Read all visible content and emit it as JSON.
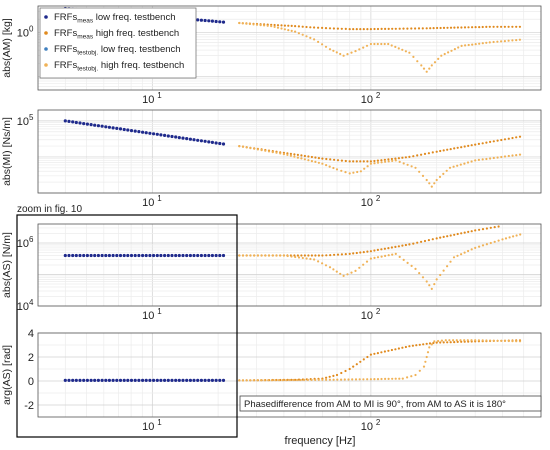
{
  "figure": {
    "xlabel": "frequency [Hz]",
    "zoom_label": "zoom in fig. 10",
    "annotation": "Phasedifference from AM to MI is 90°, from AM to AS it is 180°",
    "colors": {
      "meas_low": "#1f2a8c",
      "meas_high": "#e08a1e",
      "test_low": "#3f7fbf",
      "test_high": "#f0b257"
    }
  },
  "legend": [
    {
      "base": "FRFs",
      "sub": "meas",
      "text": " low freq. testbench",
      "color": "#1f2a8c"
    },
    {
      "base": "FRFs",
      "sub": "meas",
      "text": " high freq. testbench",
      "color": "#e08a1e"
    },
    {
      "base": "FRFs",
      "sub": "testobj.",
      "text": " low freq. testbench",
      "color": "#3f7fbf"
    },
    {
      "base": "FRFs",
      "sub": "testobj.",
      "text": " high freq. testbench",
      "color": "#f0b257"
    }
  ],
  "chart_data": [
    {
      "type": "scatter",
      "xscale": "log",
      "yscale": "log",
      "xlim": [
        3,
        600
      ],
      "ylim": [
        0.05,
        4
      ],
      "grid": true,
      "xticks": [
        10,
        100
      ],
      "yticks": [
        1
      ],
      "xlabel": "",
      "ylabel": "abs(AM) [kg]",
      "series": [
        {
          "key": "meas_low",
          "f": [
            4,
            22
          ],
          "v": [
            3.5,
            1.7
          ]
        },
        {
          "key": "meas_high",
          "f": [
            25,
            35,
            45,
            55,
            65,
            80,
            100,
            130,
            180,
            250,
            350,
            500
          ],
          "v": [
            1.65,
            1.5,
            1.4,
            1.3,
            1.25,
            1.2,
            1.2,
            1.22,
            1.25,
            1.3,
            1.35,
            1.35
          ]
        },
        {
          "key": "test_high",
          "f": [
            25,
            35,
            45,
            55,
            65,
            75,
            85,
            100,
            120,
            150,
            170,
            180,
            190,
            210,
            260,
            350,
            500
          ],
          "v": [
            1.65,
            1.4,
            1.05,
            0.7,
            0.42,
            0.3,
            0.38,
            0.55,
            0.55,
            0.35,
            0.18,
            0.13,
            0.18,
            0.3,
            0.5,
            0.6,
            0.7
          ]
        }
      ]
    },
    {
      "type": "scatter",
      "xscale": "log",
      "yscale": "log",
      "xlim": [
        3,
        600
      ],
      "ylim": [
        1000,
        200000
      ],
      "grid": true,
      "xticks": [
        10,
        100
      ],
      "yticks": [
        100000
      ],
      "xlabel": "",
      "ylabel": "abs(MI) [Ns/m]",
      "series": [
        {
          "key": "meas_low",
          "f": [
            4,
            22
          ],
          "v": [
            100000,
            22000
          ]
        },
        {
          "key": "meas_high",
          "f": [
            25,
            40,
            60,
            80,
            100,
            150,
            200,
            300,
            500
          ],
          "v": [
            20000,
            13000,
            9000,
            7500,
            7500,
            10000,
            14000,
            22000,
            38000
          ]
        },
        {
          "key": "test_high",
          "f": [
            25,
            40,
            60,
            70,
            80,
            90,
            100,
            130,
            160,
            180,
            190,
            200,
            230,
            300,
            500
          ],
          "v": [
            20000,
            12000,
            6500,
            4500,
            3500,
            4000,
            6500,
            8000,
            5000,
            2300,
            1500,
            2300,
            5000,
            8000,
            12000
          ]
        }
      ]
    },
    {
      "type": "scatter",
      "xscale": "log",
      "yscale": "log",
      "xlim": [
        3,
        600
      ],
      "ylim": [
        10000,
        4000000
      ],
      "grid": true,
      "xticks": [
        10,
        100
      ],
      "yticks": [
        10000,
        1000000
      ],
      "xlabel": "",
      "ylabel": "abs(AS) [N/m]",
      "series": [
        {
          "key": "meas_low",
          "f": [
            4,
            22
          ],
          "v": [
            400000,
            400000
          ]
        },
        {
          "key": "meas_high",
          "f": [
            25,
            40,
            60,
            80,
            100,
            150,
            200,
            300,
            400
          ],
          "v": [
            400000,
            400000,
            400000,
            450000,
            550000,
            900000,
            1400000,
            2500000,
            3500000
          ]
        },
        {
          "key": "test_high",
          "f": [
            25,
            40,
            55,
            65,
            75,
            85,
            100,
            130,
            160,
            180,
            190,
            200,
            240,
            300,
            400,
            500
          ],
          "v": [
            400000,
            400000,
            300000,
            170000,
            90000,
            130000,
            320000,
            450000,
            150000,
            60000,
            35000,
            70000,
            350000,
            700000,
            1300000,
            2000000
          ]
        }
      ]
    },
    {
      "type": "scatter",
      "xscale": "log",
      "yscale": "linear",
      "xlim": [
        3,
        600
      ],
      "ylim": [
        -3,
        4
      ],
      "grid": true,
      "xticks": [
        10,
        100
      ],
      "yticks": [
        -2,
        0,
        2,
        4
      ],
      "xlabel": "frequency [Hz]",
      "ylabel": "arg(AS) [rad]",
      "series": [
        {
          "key": "meas_low",
          "f": [
            4,
            22
          ],
          "v": [
            0.05,
            0.05
          ]
        },
        {
          "key": "meas_high",
          "f": [
            25,
            45,
            60,
            70,
            80,
            100,
            150,
            180,
            200,
            300,
            500
          ],
          "v": [
            0.05,
            0.1,
            0.2,
            0.5,
            1.0,
            2.2,
            2.9,
            3.1,
            3.2,
            3.3,
            3.4
          ]
        },
        {
          "key": "test_high",
          "f": [
            25,
            60,
            100,
            140,
            160,
            175,
            180,
            185,
            195,
            220,
            300,
            500
          ],
          "v": [
            0.05,
            0.1,
            0.15,
            0.2,
            0.5,
            1.2,
            2.0,
            2.8,
            3.3,
            3.4,
            3.4,
            3.3
          ]
        }
      ]
    }
  ]
}
